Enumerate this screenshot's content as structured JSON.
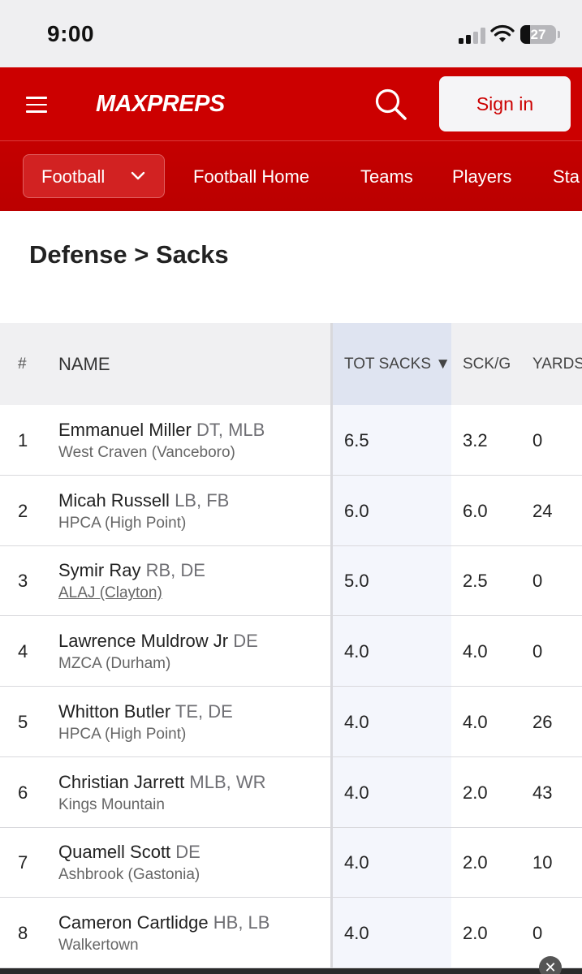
{
  "status_bar": {
    "time": "9:00",
    "battery": "27"
  },
  "header": {
    "logo": "MAXPREPS",
    "sign_in": "Sign in"
  },
  "nav": {
    "sport": "Football",
    "links": [
      "Football Home",
      "Teams",
      "Players",
      "Sta"
    ]
  },
  "page_title": "Defense > Sacks",
  "table": {
    "columns": [
      "#",
      "NAME",
      "TOT SACKS ▼",
      "SCK/G",
      "YARDS"
    ],
    "rows": [
      {
        "rank": "1",
        "name": "Emmanuel Miller",
        "pos": "DT, MLB",
        "school": "West Craven (Vanceboro)",
        "tot_sacks": "6.5",
        "sck_g": "3.2",
        "yards": "0"
      },
      {
        "rank": "2",
        "name": "Micah Russell",
        "pos": "LB, FB",
        "school": "HPCA (High Point)",
        "tot_sacks": "6.0",
        "sck_g": "6.0",
        "yards": "24"
      },
      {
        "rank": "3",
        "name": "Symir Ray",
        "pos": "RB, DE",
        "school": "ALAJ (Clayton)",
        "tot_sacks": "5.0",
        "sck_g": "2.5",
        "yards": "0"
      },
      {
        "rank": "4",
        "name": "Lawrence Muldrow Jr",
        "pos": "DE",
        "school": "MZCA (Durham)",
        "tot_sacks": "4.0",
        "sck_g": "4.0",
        "yards": "0"
      },
      {
        "rank": "5",
        "name": "Whitton Butler",
        "pos": "TE, DE",
        "school": "HPCA (High Point)",
        "tot_sacks": "4.0",
        "sck_g": "4.0",
        "yards": "26"
      },
      {
        "rank": "6",
        "name": "Christian Jarrett",
        "pos": "MLB, WR",
        "school": "Kings Mountain",
        "tot_sacks": "4.0",
        "sck_g": "2.0",
        "yards": "43"
      },
      {
        "rank": "7",
        "name": "Quamell Scott",
        "pos": "DE",
        "school": "Ashbrook (Gastonia)",
        "tot_sacks": "4.0",
        "sck_g": "2.0",
        "yards": "10"
      },
      {
        "rank": "8",
        "name": "Cameron Cartlidge",
        "pos": "HB, LB",
        "school": "Walkertown",
        "tot_sacks": "4.0",
        "sck_g": "2.0",
        "yards": "0"
      }
    ]
  },
  "colors": {
    "brand_red": "#cc0000",
    "sorted_header": "#dfe4f1"
  }
}
